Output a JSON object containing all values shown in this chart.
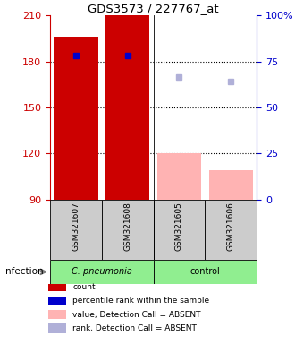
{
  "title": "GDS3573 / 227767_at",
  "samples": [
    "GSM321607",
    "GSM321608",
    "GSM321605",
    "GSM321606"
  ],
  "groups": [
    "C. pneumonia",
    "C. pneumonia",
    "control",
    "control"
  ],
  "group_labels": [
    "C. pneumonia",
    "control"
  ],
  "ylim": [
    90,
    210
  ],
  "yticks": [
    90,
    120,
    150,
    180,
    210
  ],
  "y2lim": [
    0,
    100
  ],
  "y2ticks": [
    0,
    25,
    50,
    75,
    100
  ],
  "y2ticklabels": [
    "0",
    "25",
    "50",
    "75",
    "100%"
  ],
  "bar_values": [
    196,
    210,
    120,
    109
  ],
  "bar_colors": [
    "#cc0000",
    "#cc0000",
    "#ffb3b3",
    "#ffb3b3"
  ],
  "bar_width": 0.85,
  "percentile_values": [
    184,
    184,
    null,
    null
  ],
  "percentile_color": "#0000cc",
  "rank_absent_values": [
    null,
    null,
    170,
    167
  ],
  "rank_absent_color": "#b0b0d8",
  "legend_items": [
    {
      "label": "count",
      "color": "#cc0000"
    },
    {
      "label": "percentile rank within the sample",
      "color": "#0000cc"
    },
    {
      "label": "value, Detection Call = ABSENT",
      "color": "#ffb3b3"
    },
    {
      "label": "rank, Detection Call = ABSENT",
      "color": "#b0b0d8"
    }
  ],
  "infection_label": "infection",
  "tick_color_left": "#cc0000",
  "tick_color_right": "#0000cc",
  "plot_bg_color": "#ffffff",
  "sample_box_color": "#cccccc",
  "group_box_colors": [
    "#90ee90",
    "#90ee90"
  ],
  "group_texts": [
    "C. pneumonia",
    "control"
  ],
  "group_ranges": [
    [
      0,
      2
    ],
    [
      2,
      4
    ]
  ]
}
